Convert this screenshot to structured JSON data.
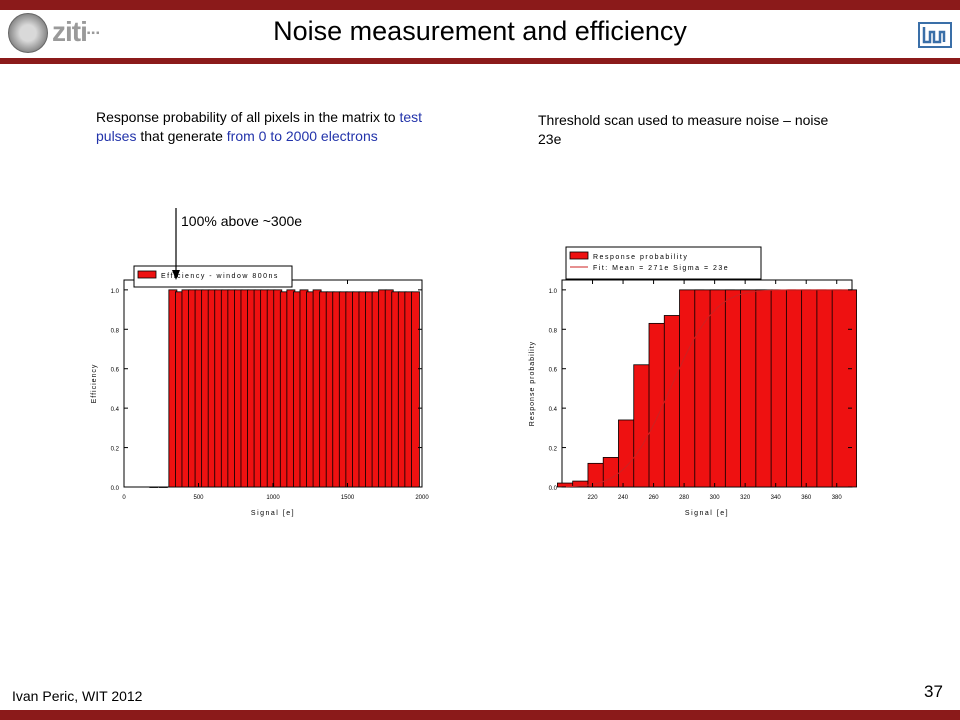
{
  "slide": {
    "title": "Noise measurement and efficiency",
    "logo_text": "ziti",
    "author": "Ivan Peric, WIT 2012",
    "page_number": "37",
    "accent_color": "#8b1a1a"
  },
  "left_caption": {
    "part1": "Response probability of all pixels in the matrix to ",
    "part2": "test pulses",
    "part3": " that generate ",
    "part4": "from 0 to 2000 electrons"
  },
  "right_caption": "Threshold scan used to measure noise – noise 23e",
  "annotation": "100% above ~300e",
  "chart_data": [
    {
      "type": "bar",
      "title": "",
      "xlabel": "Signal [e]",
      "ylabel": "Efficiency",
      "xlim": [
        0,
        2000
      ],
      "ylim": [
        0,
        1.05
      ],
      "xticks": [
        0,
        500,
        1000,
        1500,
        2000
      ],
      "yticks": [
        0.0,
        0.2,
        0.4,
        0.6,
        0.8,
        1.0
      ],
      "legend": "Efficiency - window 800ns",
      "legend_position": "top-left",
      "bar_width": 54,
      "x": [
        200,
        264,
        328,
        372,
        416,
        460,
        504,
        548,
        592,
        636,
        680,
        724,
        768,
        812,
        856,
        900,
        944,
        988,
        1032,
        1076,
        1120,
        1164,
        1208,
        1252,
        1296,
        1340,
        1384,
        1428,
        1472,
        1516,
        1560,
        1604,
        1648,
        1692,
        1736,
        1780,
        1824,
        1868,
        1912,
        1956
      ],
      "values": [
        0.0,
        0.0,
        1.0,
        0.99,
        1.0,
        1.0,
        1.0,
        1.0,
        1.0,
        1.0,
        1.0,
        1.0,
        1.0,
        1.0,
        1.0,
        1.0,
        1.0,
        1.0,
        1.0,
        0.99,
        1.0,
        0.99,
        1.0,
        0.99,
        1.0,
        0.99,
        0.99,
        0.99,
        0.99,
        0.99,
        0.99,
        0.99,
        0.99,
        0.99,
        1.0,
        1.0,
        0.99,
        0.99,
        0.99,
        0.99
      ],
      "color": "#ee1111"
    },
    {
      "type": "bar",
      "title": "",
      "xlabel": "Signal [e]",
      "ylabel": "Response probability",
      "xlim": [
        200,
        390
      ],
      "ylim": [
        0,
        1.05
      ],
      "xticks": [
        220,
        240,
        260,
        280,
        300,
        320,
        340,
        360,
        380
      ],
      "yticks": [
        0.0,
        0.2,
        0.4,
        0.6,
        0.8,
        1.0
      ],
      "legend": [
        "Response probability",
        "Fit: Mean = 271e Sigma = 23e"
      ],
      "legend_position": "top-left",
      "bar_width": 16,
      "x": [
        205,
        215,
        225,
        235,
        245,
        255,
        265,
        275,
        285,
        295,
        305,
        315,
        325,
        335,
        345,
        355,
        365,
        375,
        385
      ],
      "values": [
        0.02,
        0.03,
        0.12,
        0.15,
        0.34,
        0.62,
        0.83,
        0.87,
        1.0,
        1.0,
        1.0,
        1.0,
        1.0,
        1.0,
        1.0,
        1.0,
        1.0,
        1.0,
        1.0
      ],
      "fit": {
        "mean": 271,
        "sigma": 23,
        "color": "#cc2222"
      },
      "color": "#ee1111"
    }
  ]
}
